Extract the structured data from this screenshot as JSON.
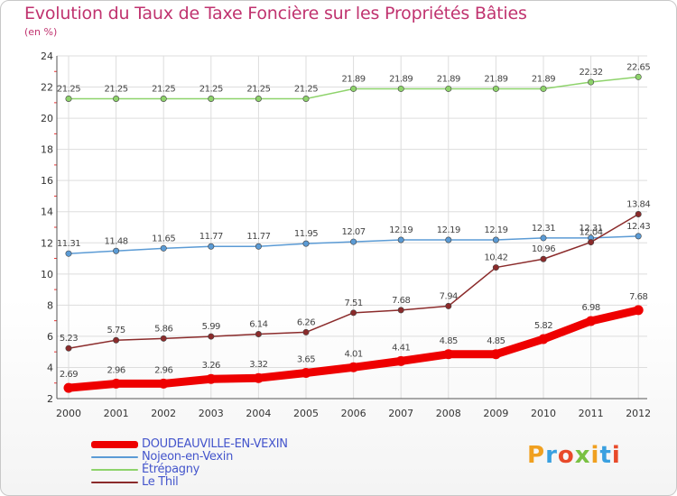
{
  "chart_data": {
    "type": "line",
    "title": "Evolution du Taux de Taxe Foncière sur les Propriétés Bâties",
    "ylabel": "(en %)",
    "xlabel": "",
    "categories": [
      "2000",
      "2001",
      "2002",
      "2003",
      "2004",
      "2005",
      "2006",
      "2007",
      "2008",
      "2009",
      "2010",
      "2011",
      "2012"
    ],
    "ylim": [
      2,
      24
    ],
    "yticks": [
      2,
      4,
      6,
      8,
      10,
      12,
      14,
      16,
      18,
      20,
      22,
      24
    ],
    "series": [
      {
        "name": "DOUDEAUVILLE-EN-VEXIN",
        "color": "#ee0000",
        "values": [
          2.69,
          2.96,
          2.96,
          3.26,
          3.32,
          3.65,
          4.01,
          4.41,
          4.85,
          4.85,
          5.82,
          6.98,
          7.68
        ],
        "labels": [
          "2.69",
          "2.96",
          "2.96",
          "3.26",
          "3.32",
          "3.65",
          "4.01",
          "4.41",
          "4.85",
          "4.85",
          "5.82",
          "6.98",
          "7.68"
        ]
      },
      {
        "name": "Nojeon-en-Vexin",
        "color": "#5b9bd5",
        "values": [
          11.31,
          11.48,
          11.65,
          11.77,
          11.77,
          11.95,
          12.07,
          12.19,
          12.19,
          12.19,
          12.31,
          12.31,
          12.43
        ],
        "labels": [
          "11.31",
          "11.48",
          "11.65",
          "11.77",
          "11.77",
          "11.95",
          "12.07",
          "12.19",
          "12.19",
          "12.19",
          "12.31",
          "12.31",
          "12.43"
        ]
      },
      {
        "name": "Étrépagny",
        "color": "#8ed36b",
        "values": [
          21.25,
          21.25,
          21.25,
          21.25,
          21.25,
          21.25,
          21.89,
          21.89,
          21.89,
          21.89,
          21.89,
          22.32,
          22.65
        ],
        "labels": [
          "21.25",
          "21.25",
          "21.25",
          "21.25",
          "21.25",
          "21.25",
          "21.89",
          "21.89",
          "21.89",
          "21.89",
          "21.89",
          "22.32",
          "22.65"
        ]
      },
      {
        "name": "Le Thil",
        "color": "#8b2b2b",
        "values": [
          5.23,
          5.75,
          5.86,
          5.99,
          6.14,
          6.26,
          7.51,
          7.68,
          7.94,
          10.42,
          10.96,
          12.04,
          13.84
        ],
        "labels": [
          "5.23",
          "5.75",
          "5.86",
          "5.99",
          "6.14",
          "6.26",
          "7.51",
          "7.68",
          "7.94",
          "10.42",
          "10.96",
          "12.04",
          "13.84"
        ]
      }
    ]
  },
  "logo": {
    "text": "Proxiti"
  }
}
